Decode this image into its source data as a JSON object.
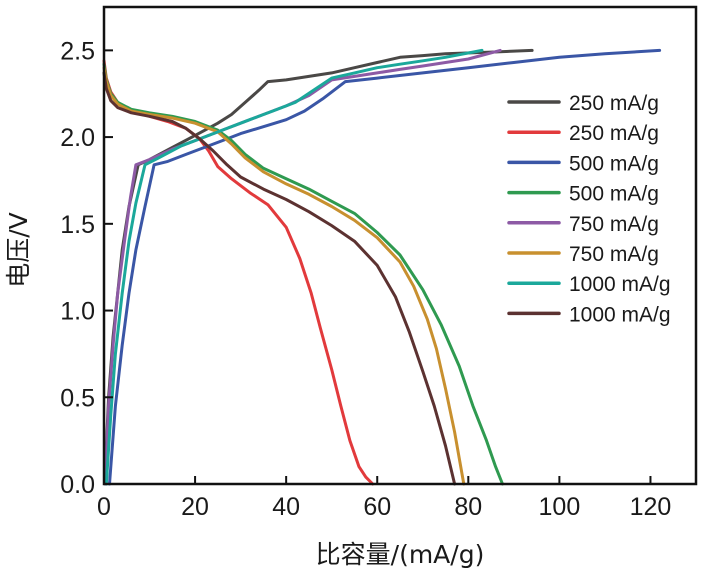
{
  "chart_data": {
    "type": "line",
    "title": "",
    "xlabel": "比容量/(mA/g)",
    "ylabel": "电压/V",
    "xlim": [
      0,
      130
    ],
    "ylim": [
      0,
      2.75
    ],
    "xticks": [
      0,
      20,
      40,
      60,
      80,
      100,
      120
    ],
    "xtick_labels": [
      "0",
      "20",
      "40",
      "60",
      "80",
      "100",
      "120"
    ],
    "yticks": [
      0.0,
      0.5,
      1.0,
      1.5,
      2.0,
      2.5
    ],
    "ytick_labels": [
      "0.0",
      "0.5",
      "1.0",
      "1.5",
      "2.0",
      "2.5"
    ],
    "grid": false,
    "legend_position": "right",
    "series": [
      {
        "name": "250 mA/g",
        "role": "charge",
        "color": "#4a4846",
        "x": [
          0.3,
          1,
          2,
          3,
          4,
          5.5,
          7.5,
          10,
          15,
          20,
          25,
          28,
          31,
          34,
          36,
          40,
          45,
          50,
          55,
          60,
          65,
          70,
          75,
          85,
          94
        ],
        "y": [
          0.1,
          0.5,
          0.85,
          1.1,
          1.35,
          1.6,
          1.84,
          1.87,
          1.94,
          2.01,
          2.08,
          2.13,
          2.2,
          2.27,
          2.32,
          2.33,
          2.35,
          2.37,
          2.4,
          2.43,
          2.46,
          2.47,
          2.48,
          2.49,
          2.5
        ]
      },
      {
        "name": "250 mA/g",
        "role": "discharge",
        "color": "#e23a3c",
        "x": [
          0,
          0.5,
          1.5,
          3,
          6,
          10,
          14,
          18,
          21,
          23,
          25,
          28,
          32,
          36,
          40,
          43,
          45.5,
          47.5,
          50,
          52,
          54,
          56,
          57.5,
          59
        ],
        "y": [
          2.44,
          2.34,
          2.26,
          2.2,
          2.15,
          2.12,
          2.09,
          2.05,
          1.99,
          1.92,
          1.83,
          1.76,
          1.68,
          1.61,
          1.48,
          1.3,
          1.1,
          0.9,
          0.66,
          0.45,
          0.25,
          0.1,
          0.04,
          0.0
        ]
      },
      {
        "name": "500 mA/g",
        "role": "charge",
        "color": "#3a56a6",
        "x": [
          1.2,
          2.5,
          4,
          5.5,
          7,
          9,
          11,
          14,
          18,
          22,
          26,
          30,
          35,
          40,
          44,
          48,
          53,
          60,
          70,
          80,
          90,
          100,
          110,
          122
        ],
        "y": [
          0.0,
          0.45,
          0.8,
          1.1,
          1.35,
          1.6,
          1.84,
          1.86,
          1.9,
          1.94,
          1.98,
          2.02,
          2.06,
          2.1,
          2.15,
          2.22,
          2.32,
          2.34,
          2.37,
          2.4,
          2.43,
          2.46,
          2.48,
          2.5
        ]
      },
      {
        "name": "500 mA/g",
        "role": "discharge",
        "color": "#2f9a50",
        "x": [
          0,
          0.5,
          1.5,
          3,
          6,
          10,
          15,
          20,
          25,
          28,
          31,
          35,
          40,
          45,
          50,
          55,
          60,
          65,
          70,
          74,
          78,
          81,
          84,
          86,
          87.5
        ],
        "y": [
          2.42,
          2.33,
          2.25,
          2.2,
          2.16,
          2.14,
          2.12,
          2.09,
          2.04,
          1.98,
          1.9,
          1.82,
          1.76,
          1.7,
          1.63,
          1.56,
          1.45,
          1.32,
          1.12,
          0.92,
          0.68,
          0.45,
          0.25,
          0.1,
          0.0
        ]
      },
      {
        "name": "750 mA/g",
        "role": "charge",
        "color": "#8d5aa5",
        "x": [
          0.2,
          1,
          2,
          3,
          4.5,
          5.8,
          7,
          10,
          15,
          20,
          25,
          30,
          35,
          40,
          45,
          50,
          55,
          60,
          65,
          70,
          75,
          80,
          87
        ],
        "y": [
          0.0,
          0.45,
          0.8,
          1.1,
          1.4,
          1.65,
          1.84,
          1.87,
          1.93,
          1.98,
          2.03,
          2.08,
          2.13,
          2.18,
          2.24,
          2.33,
          2.35,
          2.37,
          2.39,
          2.41,
          2.43,
          2.45,
          2.5
        ]
      },
      {
        "name": "750 mA/g",
        "role": "discharge",
        "color": "#c8902f",
        "x": [
          0,
          0.5,
          1.5,
          3,
          6,
          10,
          15,
          20,
          25,
          28,
          31,
          35,
          40,
          45,
          50,
          55,
          60,
          65,
          68,
          71,
          73,
          75,
          77,
          79
        ],
        "y": [
          2.4,
          2.32,
          2.24,
          2.19,
          2.15,
          2.13,
          2.11,
          2.08,
          2.03,
          1.96,
          1.88,
          1.8,
          1.73,
          1.67,
          1.6,
          1.52,
          1.42,
          1.28,
          1.14,
          0.95,
          0.78,
          0.55,
          0.3,
          0.0
        ]
      },
      {
        "name": "1000 mA/g",
        "role": "charge",
        "color": "#1ba89b",
        "x": [
          0.5,
          1.5,
          2.5,
          4,
          5.5,
          7,
          9,
          12,
          17,
          22,
          27,
          32,
          37,
          42,
          46,
          50,
          55,
          60,
          65,
          70,
          75,
          83
        ],
        "y": [
          0.0,
          0.4,
          0.75,
          1.1,
          1.4,
          1.62,
          1.84,
          1.88,
          1.95,
          2.0,
          2.05,
          2.1,
          2.15,
          2.2,
          2.27,
          2.34,
          2.37,
          2.4,
          2.42,
          2.44,
          2.46,
          2.5
        ]
      },
      {
        "name": "1000 mA/g",
        "role": "discharge",
        "color": "#5c3231",
        "x": [
          0,
          0.5,
          1.5,
          3,
          6,
          10,
          15,
          18,
          21,
          24,
          27,
          30,
          35,
          40,
          45,
          50,
          55,
          60,
          64,
          67,
          70,
          72.5,
          75,
          77
        ],
        "y": [
          2.37,
          2.28,
          2.21,
          2.17,
          2.14,
          2.12,
          2.09,
          2.05,
          1.99,
          1.92,
          1.84,
          1.77,
          1.7,
          1.64,
          1.57,
          1.49,
          1.4,
          1.26,
          1.08,
          0.88,
          0.65,
          0.45,
          0.22,
          0.0
        ]
      }
    ],
    "legend": [
      {
        "label": "250 mA/g",
        "color": "#4a4846"
      },
      {
        "label": "250 mA/g",
        "color": "#e23a3c"
      },
      {
        "label": "500 mA/g",
        "color": "#3a56a6"
      },
      {
        "label": "500 mA/g",
        "color": "#2f9a50"
      },
      {
        "label": "750 mA/g",
        "color": "#8d5aa5"
      },
      {
        "label": "750 mA/g",
        "color": "#c8902f"
      },
      {
        "label": "1000 mA/g",
        "color": "#1ba89b"
      },
      {
        "label": "1000 mA/g",
        "color": "#5c3231"
      }
    ]
  }
}
